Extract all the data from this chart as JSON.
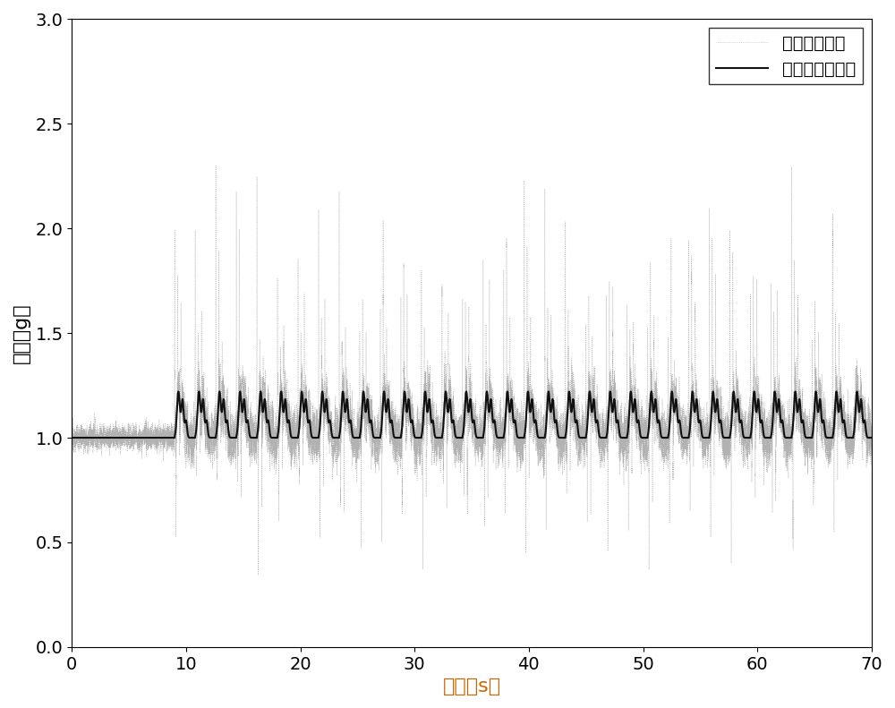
{
  "xlabel": "时间（s）",
  "ylabel": "幅值（g）",
  "xlim": [
    0,
    70
  ],
  "ylim": [
    0,
    3
  ],
  "xticks": [
    0,
    10,
    20,
    30,
    40,
    50,
    60,
    70
  ],
  "yticks": [
    0,
    0.5,
    1.0,
    1.5,
    2.0,
    2.5,
    3.0
  ],
  "legend_raw": "加速度计输出",
  "legend_filtered": "滤波平滑去噪后",
  "raw_color": "#aaaaaa",
  "filtered_color": "#111111",
  "background_color": "#ffffff",
  "xlabel_color": "#cc6600",
  "ylabel_color": "#000000",
  "figsize": [
    10.0,
    7.91
  ],
  "dpi": 100,
  "noise_start": 9.0,
  "baseline": 1.0,
  "xlabel_fontsize": 16,
  "ylabel_fontsize": 16,
  "tick_fontsize": 14,
  "legend_fontsize": 14
}
